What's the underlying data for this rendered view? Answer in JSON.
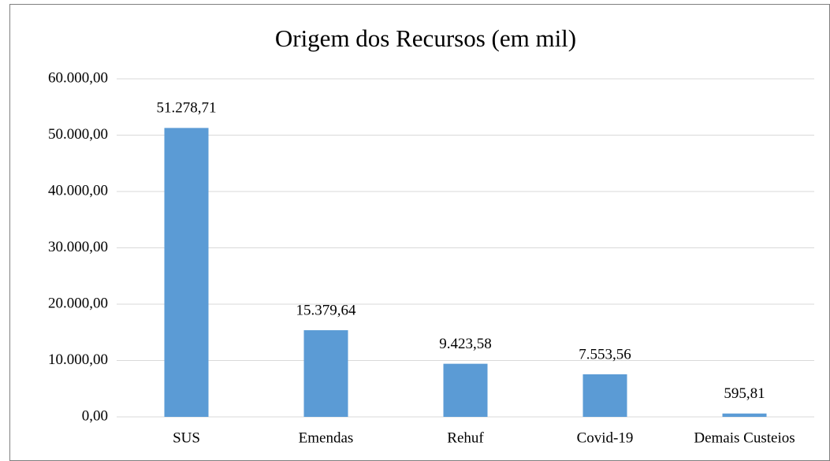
{
  "chart_data": {
    "type": "bar",
    "title": "Origem dos Recursos (em mil)",
    "categories": [
      "SUS",
      "Emendas",
      "Rehuf",
      "Covid-19",
      "Demais Custeios"
    ],
    "values": [
      51278.71,
      15379.64,
      9423.58,
      7553.56,
      595.81
    ],
    "value_labels": [
      "51.278,71",
      "15.379,64",
      "9.423,58",
      "7.553,56",
      "595,81"
    ],
    "color": "#5b9bd5",
    "ylim": [
      0,
      60000
    ],
    "yticks": [
      {
        "value": 0,
        "label": "0,00"
      },
      {
        "value": 10000,
        "label": "10.000,00"
      },
      {
        "value": 20000,
        "label": "20.000,00"
      },
      {
        "value": 30000,
        "label": "30.000,00"
      },
      {
        "value": 40000,
        "label": "40.000,00"
      },
      {
        "value": 50000,
        "label": "50.000,00"
      },
      {
        "value": 60000,
        "label": "60.000,00"
      }
    ],
    "grid": true
  }
}
